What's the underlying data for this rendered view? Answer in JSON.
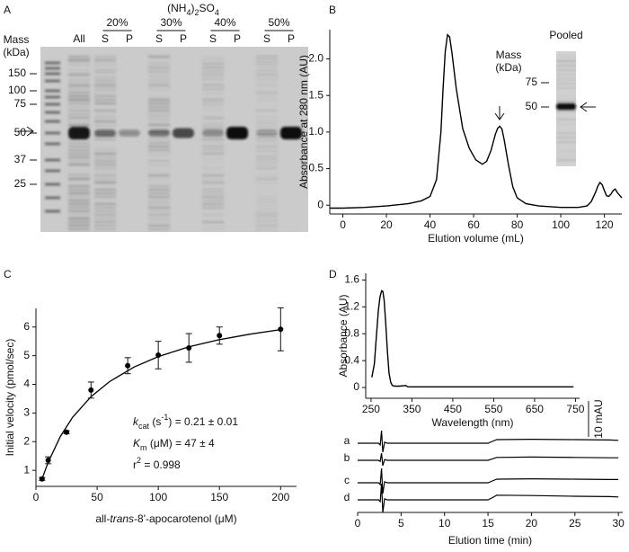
{
  "panel_labels": [
    "A",
    "B",
    "C",
    "D"
  ],
  "gel": {
    "mass_label": [
      "Mass",
      "(kDa)"
    ],
    "markers": [
      150,
      100,
      75,
      50,
      37,
      25
    ],
    "lanes": [
      "All",
      "S",
      "P",
      "S",
      "P",
      "S",
      "P",
      "S",
      "P"
    ],
    "fractions": [
      "20%",
      "30%",
      "40%",
      "50%"
    ],
    "salt": [
      {
        "text": "(NH"
      },
      {
        "text": "4",
        "format": "sub"
      },
      {
        "text": ")"
      },
      {
        "text": "2",
        "format": "sub"
      },
      {
        "text": "SO"
      },
      {
        "text": "4",
        "format": "sub"
      }
    ]
  },
  "chart_data": [
    {
      "type": "line",
      "xlabel": "Elution volume (mL)",
      "ylabel": "Absorbance at 280 nm (AU)",
      "x": [
        -6,
        0,
        10,
        20,
        30,
        36,
        40,
        43,
        45,
        46,
        47,
        48,
        49,
        50,
        52,
        55,
        58,
        61,
        64,
        66,
        68,
        70,
        71,
        72,
        73,
        74,
        76,
        78,
        80,
        84,
        90,
        100,
        108,
        112,
        114,
        116,
        117,
        118,
        119,
        120,
        121,
        122,
        123,
        124,
        125,
        126,
        128
      ],
      "values": [
        -0.04,
        -0.04,
        -0.03,
        -0.01,
        0.02,
        0.06,
        0.12,
        0.35,
        1.0,
        1.6,
        2.1,
        2.33,
        2.3,
        2.1,
        1.6,
        1.05,
        0.78,
        0.62,
        0.56,
        0.6,
        0.75,
        0.97,
        1.05,
        1.08,
        1.04,
        0.9,
        0.55,
        0.25,
        0.1,
        0.02,
        -0.01,
        -0.03,
        -0.03,
        -0.01,
        0.05,
        0.18,
        0.26,
        0.31,
        0.28,
        0.2,
        0.13,
        0.12,
        0.15,
        0.2,
        0.22,
        0.17,
        0.1
      ],
      "color": "#000000",
      "xlim": [
        -6,
        128
      ],
      "ylim": [
        -0.12,
        2.4
      ],
      "xticks": [
        0,
        20,
        40,
        60,
        80,
        100,
        120
      ],
      "yticks": [
        0,
        0.5,
        {
          "value": 1,
          "label": "1.0"
        },
        1.5,
        {
          "value": 2,
          "label": "2.0"
        }
      ],
      "inset": {
        "title": "Pooled",
        "mass_label": [
          "Mass",
          "(kDa)"
        ],
        "markers": [
          75,
          50
        ]
      }
    },
    {
      "type": "scatter",
      "xlabel": [
        {
          "text": "all-"
        },
        {
          "text": "trans",
          "format": "italic"
        },
        {
          "text": "-8'-apocarotenol (μM)"
        }
      ],
      "ylabel": "Initial velocity (pmol/sec)",
      "x": [
        5,
        10,
        25,
        45,
        75,
        100,
        125,
        150,
        200
      ],
      "values": [
        0.7,
        1.35,
        2.33,
        3.8,
        4.65,
        5.02,
        5.27,
        5.7,
        5.92
      ],
      "errors": [
        0.05,
        0.12,
        0.05,
        0.28,
        0.28,
        0.48,
        0.5,
        0.3,
        0.75
      ],
      "fit": {
        "x": [
          5,
          10,
          20,
          30,
          45,
          60,
          80,
          100,
          125,
          150,
          175,
          200
        ],
        "values": [
          0.7,
          1.28,
          2.18,
          2.85,
          3.57,
          4.09,
          4.6,
          4.97,
          5.31,
          5.56,
          5.75,
          5.91
        ]
      },
      "color": "#000000",
      "xlim": [
        0,
        213
      ],
      "ylim": [
        0.44,
        6.65
      ],
      "xticks": [
        0,
        50,
        100,
        150,
        200
      ],
      "yticks": [
        1,
        2,
        3,
        4,
        5,
        6
      ],
      "annotations": [
        [
          {
            "text": "k",
            "format": "italic"
          },
          {
            "text": "cat",
            "format": "sub"
          },
          {
            "text": " (s"
          },
          {
            "text": "-1",
            "format": "sup"
          },
          {
            "text": ") = 0.21 ± 0.01"
          }
        ],
        [
          {
            "text": "K",
            "format": "italic"
          },
          {
            "text": "m",
            "format": "sub"
          },
          {
            "text": " (μM) = 47 ± 4"
          }
        ],
        [
          {
            "text": "r"
          },
          {
            "text": "2",
            "format": "sup"
          },
          {
            "text": " = 0.998"
          }
        ]
      ]
    },
    {
      "type": "line",
      "xlabel": "Wavelength (nm)",
      "ylabel": "Absorbance (AU)",
      "x": [
        252,
        258,
        263,
        268,
        272,
        276,
        279,
        282,
        286,
        290,
        294,
        298,
        302,
        308,
        320,
        335,
        340,
        400,
        500,
        600,
        700,
        745
      ],
      "values": [
        0.15,
        0.35,
        0.75,
        1.15,
        1.35,
        1.44,
        1.43,
        1.3,
        0.95,
        0.55,
        0.22,
        0.08,
        0.03,
        0.02,
        0.02,
        0.03,
        0.01,
        0.01,
        0.01,
        0.01,
        0.01,
        0.01
      ],
      "color": "#000000",
      "xlim": [
        237,
        760
      ],
      "ylim": [
        -0.16,
        1.7
      ],
      "xticks": [
        250,
        350,
        450,
        550,
        650,
        750
      ],
      "yticks": [
        0,
        0.4,
        0.8,
        1.2,
        1.6
      ]
    },
    {
      "type": "traces",
      "xlabel": "Elution time (min)",
      "x": [
        0,
        2.4,
        2.6,
        2.75,
        2.9,
        3.1,
        3.4,
        15,
        15.5,
        16,
        20,
        25,
        29,
        30
      ],
      "series": [
        {
          "name": "a",
          "color": "#000000",
          "values": [
            0,
            0,
            -0.5,
            3.5,
            -2.5,
            0.3,
            0,
            0,
            0.5,
            1.0,
            1.1,
            1.0,
            0.9,
            0.8
          ]
        },
        {
          "name": "b",
          "color": "#000000",
          "values": [
            0,
            0,
            -0.3,
            2,
            -1.5,
            0.2,
            0,
            0,
            0.4,
            0.8,
            0.9,
            0.8,
            0.7,
            0.7
          ]
        },
        {
          "name": "c",
          "color": "#000000",
          "values": [
            0,
            0,
            -0.5,
            4,
            -3,
            0.3,
            0,
            0,
            0.5,
            1.0,
            1.1,
            1.0,
            0.9,
            0.9
          ]
        },
        {
          "name": "d",
          "color": "#000000",
          "values": [
            0,
            0,
            -0.5,
            4.5,
            -3.5,
            0.3,
            0,
            0,
            0.6,
            1.3,
            1.2,
            1.0,
            0.9,
            0.8
          ]
        }
      ],
      "xlim": [
        0,
        30.5
      ],
      "xticks": [
        0,
        5,
        10,
        15,
        20,
        25,
        30
      ],
      "scale_bar": {
        "value": 10,
        "label": "10 mAU"
      }
    }
  ]
}
